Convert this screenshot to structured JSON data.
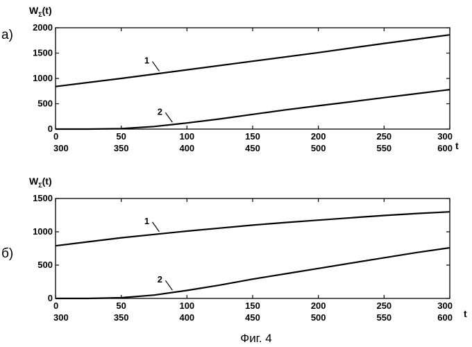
{
  "figure_caption": "Фиг. 4",
  "chart_data": [
    {
      "type": "line",
      "panel_label": "а)",
      "ylabel": "W_Σ(t)",
      "ylabel_main": "W",
      "ylabel_sub": "Σ",
      "ylabel_tail": "(t)",
      "xlabel": "t",
      "xlim": [
        0,
        300
      ],
      "ylim": [
        0,
        2000
      ],
      "yticks": [
        0,
        500,
        1000,
        1500,
        2000
      ],
      "xticks": [
        0,
        50,
        100,
        150,
        200,
        250,
        300
      ],
      "xticks_secondary": [
        300,
        350,
        400,
        450,
        500,
        550,
        600
      ],
      "grid": false,
      "series": [
        {
          "name": "1",
          "x": [
            0,
            50,
            100,
            150,
            200,
            250,
            300
          ],
          "y": [
            840,
            1000,
            1170,
            1340,
            1510,
            1690,
            1860
          ]
        },
        {
          "name": "2",
          "x": [
            0,
            25,
            50,
            75,
            100,
            125,
            150,
            175,
            200,
            225,
            250,
            275,
            300
          ],
          "y": [
            0,
            0,
            10,
            50,
            120,
            200,
            290,
            380,
            460,
            540,
            620,
            700,
            780
          ]
        }
      ]
    },
    {
      "type": "line",
      "panel_label": "б)",
      "ylabel": "W_Σ(t)",
      "ylabel_main": "W",
      "ylabel_sub": "Σ",
      "ylabel_tail": "(t)",
      "xlabel": "t",
      "xlim": [
        0,
        300
      ],
      "ylim": [
        0,
        1500
      ],
      "yticks": [
        0,
        500,
        1000,
        1500
      ],
      "xticks": [
        0,
        50,
        100,
        150,
        200,
        250,
        300
      ],
      "xticks_secondary": [
        300,
        350,
        400,
        450,
        500,
        550,
        600
      ],
      "grid": false,
      "series": [
        {
          "name": "1",
          "x": [
            0,
            25,
            50,
            75,
            100,
            125,
            150,
            175,
            200,
            225,
            250,
            275,
            300
          ],
          "y": [
            790,
            850,
            910,
            960,
            1010,
            1055,
            1100,
            1140,
            1175,
            1210,
            1245,
            1275,
            1300
          ]
        },
        {
          "name": "2",
          "x": [
            0,
            25,
            50,
            75,
            100,
            125,
            150,
            175,
            200,
            225,
            250,
            275,
            300
          ],
          "y": [
            0,
            0,
            10,
            50,
            120,
            200,
            290,
            370,
            450,
            530,
            610,
            690,
            760
          ]
        }
      ]
    }
  ]
}
